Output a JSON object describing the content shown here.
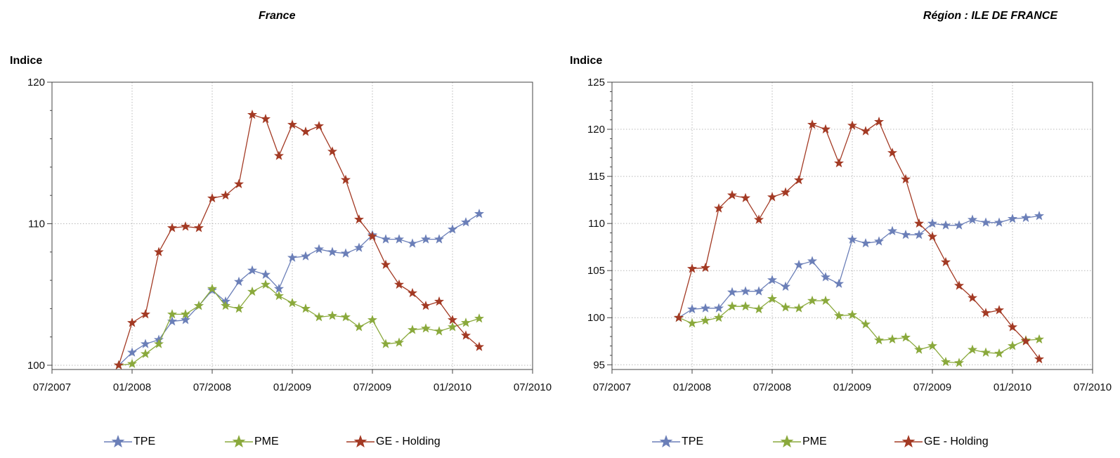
{
  "legend": {
    "series": [
      {
        "name": "TPE",
        "color": "#6b7fb8"
      },
      {
        "name": "PME",
        "color": "#8aa93c"
      },
      {
        "name": "GE - Holding",
        "color": "#a33a24"
      }
    ],
    "marker": "star"
  },
  "chart_data": [
    {
      "type": "line",
      "title": "France",
      "ylabel": "Indice",
      "xlabel": "",
      "grid": true,
      "legend_position": "bottom",
      "xlim": [
        "2007-07",
        "2010-07"
      ],
      "xticks": [
        "07/2007",
        "01/2008",
        "07/2008",
        "01/2009",
        "07/2009",
        "01/2010",
        "07/2010"
      ],
      "ylim": [
        99.7,
        120
      ],
      "yticks": [
        100,
        110,
        120
      ],
      "x": [
        "2007-12",
        "2008-01",
        "2008-02",
        "2008-03",
        "2008-04",
        "2008-05",
        "2008-06",
        "2008-07",
        "2008-08",
        "2008-09",
        "2008-10",
        "2008-11",
        "2008-12",
        "2009-01",
        "2009-02",
        "2009-03",
        "2009-04",
        "2009-05",
        "2009-06",
        "2009-07",
        "2009-08",
        "2009-09",
        "2009-10",
        "2009-11",
        "2009-12",
        "2010-01",
        "2010-02",
        "2010-03"
      ],
      "series": [
        {
          "name": "TPE",
          "values": [
            100.0,
            100.9,
            101.5,
            101.8,
            103.1,
            103.2,
            104.2,
            105.3,
            104.5,
            105.9,
            106.7,
            106.4,
            105.4,
            107.6,
            107.7,
            108.2,
            108.0,
            107.9,
            108.3,
            109.2,
            108.9,
            108.9,
            108.6,
            108.9,
            108.9,
            109.6,
            110.1,
            110.7
          ]
        },
        {
          "name": "PME",
          "values": [
            100.0,
            100.1,
            100.8,
            101.5,
            103.6,
            103.6,
            104.2,
            105.4,
            104.2,
            104.0,
            105.2,
            105.7,
            104.9,
            104.4,
            104.0,
            103.4,
            103.5,
            103.4,
            102.7,
            103.2,
            101.5,
            101.6,
            102.5,
            102.6,
            102.4,
            102.7,
            103.0,
            103.3
          ]
        },
        {
          "name": "GE - Holding",
          "values": [
            100.0,
            103.0,
            103.6,
            108.0,
            109.7,
            109.8,
            109.7,
            111.8,
            112.0,
            112.8,
            117.7,
            117.4,
            114.8,
            117.0,
            116.5,
            116.9,
            115.1,
            113.1,
            110.3,
            109.1,
            107.1,
            105.7,
            105.1,
            104.2,
            104.5,
            103.2,
            102.1,
            101.3
          ]
        }
      ]
    },
    {
      "type": "line",
      "title": "Région : ILE DE FRANCE",
      "ylabel": "Indice",
      "xlabel": "",
      "grid": true,
      "legend_position": "bottom",
      "xlim": [
        "2007-07",
        "2010-07"
      ],
      "xticks": [
        "07/2007",
        "01/2008",
        "07/2008",
        "01/2009",
        "07/2009",
        "01/2010",
        "07/2010"
      ],
      "ylim": [
        94.5,
        125
      ],
      "yticks": [
        95,
        100,
        105,
        110,
        115,
        120,
        125
      ],
      "x": [
        "2007-12",
        "2008-01",
        "2008-02",
        "2008-03",
        "2008-04",
        "2008-05",
        "2008-06",
        "2008-07",
        "2008-08",
        "2008-09",
        "2008-10",
        "2008-11",
        "2008-12",
        "2009-01",
        "2009-02",
        "2009-03",
        "2009-04",
        "2009-05",
        "2009-06",
        "2009-07",
        "2009-08",
        "2009-09",
        "2009-10",
        "2009-11",
        "2009-12",
        "2010-01",
        "2010-02",
        "2010-03"
      ],
      "series": [
        {
          "name": "TPE",
          "values": [
            100.0,
            100.9,
            101.0,
            101.0,
            102.7,
            102.8,
            102.8,
            104.0,
            103.3,
            105.6,
            106.0,
            104.3,
            103.6,
            108.3,
            107.9,
            108.1,
            109.2,
            108.8,
            108.8,
            110.0,
            109.8,
            109.8,
            110.4,
            110.1,
            110.1,
            110.5,
            110.6,
            110.8
          ]
        },
        {
          "name": "PME",
          "values": [
            100.0,
            99.4,
            99.7,
            100.0,
            101.2,
            101.2,
            100.9,
            102.0,
            101.1,
            101.0,
            101.8,
            101.8,
            100.2,
            100.3,
            99.3,
            97.6,
            97.7,
            97.9,
            96.6,
            97.0,
            95.3,
            95.2,
            96.6,
            96.3,
            96.2,
            97.0,
            97.6,
            97.7
          ]
        },
        {
          "name": "GE - Holding",
          "values": [
            100.0,
            105.2,
            105.3,
            111.6,
            113.0,
            112.7,
            110.4,
            112.8,
            113.3,
            114.6,
            120.5,
            120.0,
            116.4,
            120.4,
            119.8,
            120.8,
            117.5,
            114.7,
            110.0,
            108.6,
            105.9,
            103.4,
            102.1,
            100.5,
            100.8,
            99.0,
            97.5,
            95.6
          ]
        }
      ]
    }
  ]
}
